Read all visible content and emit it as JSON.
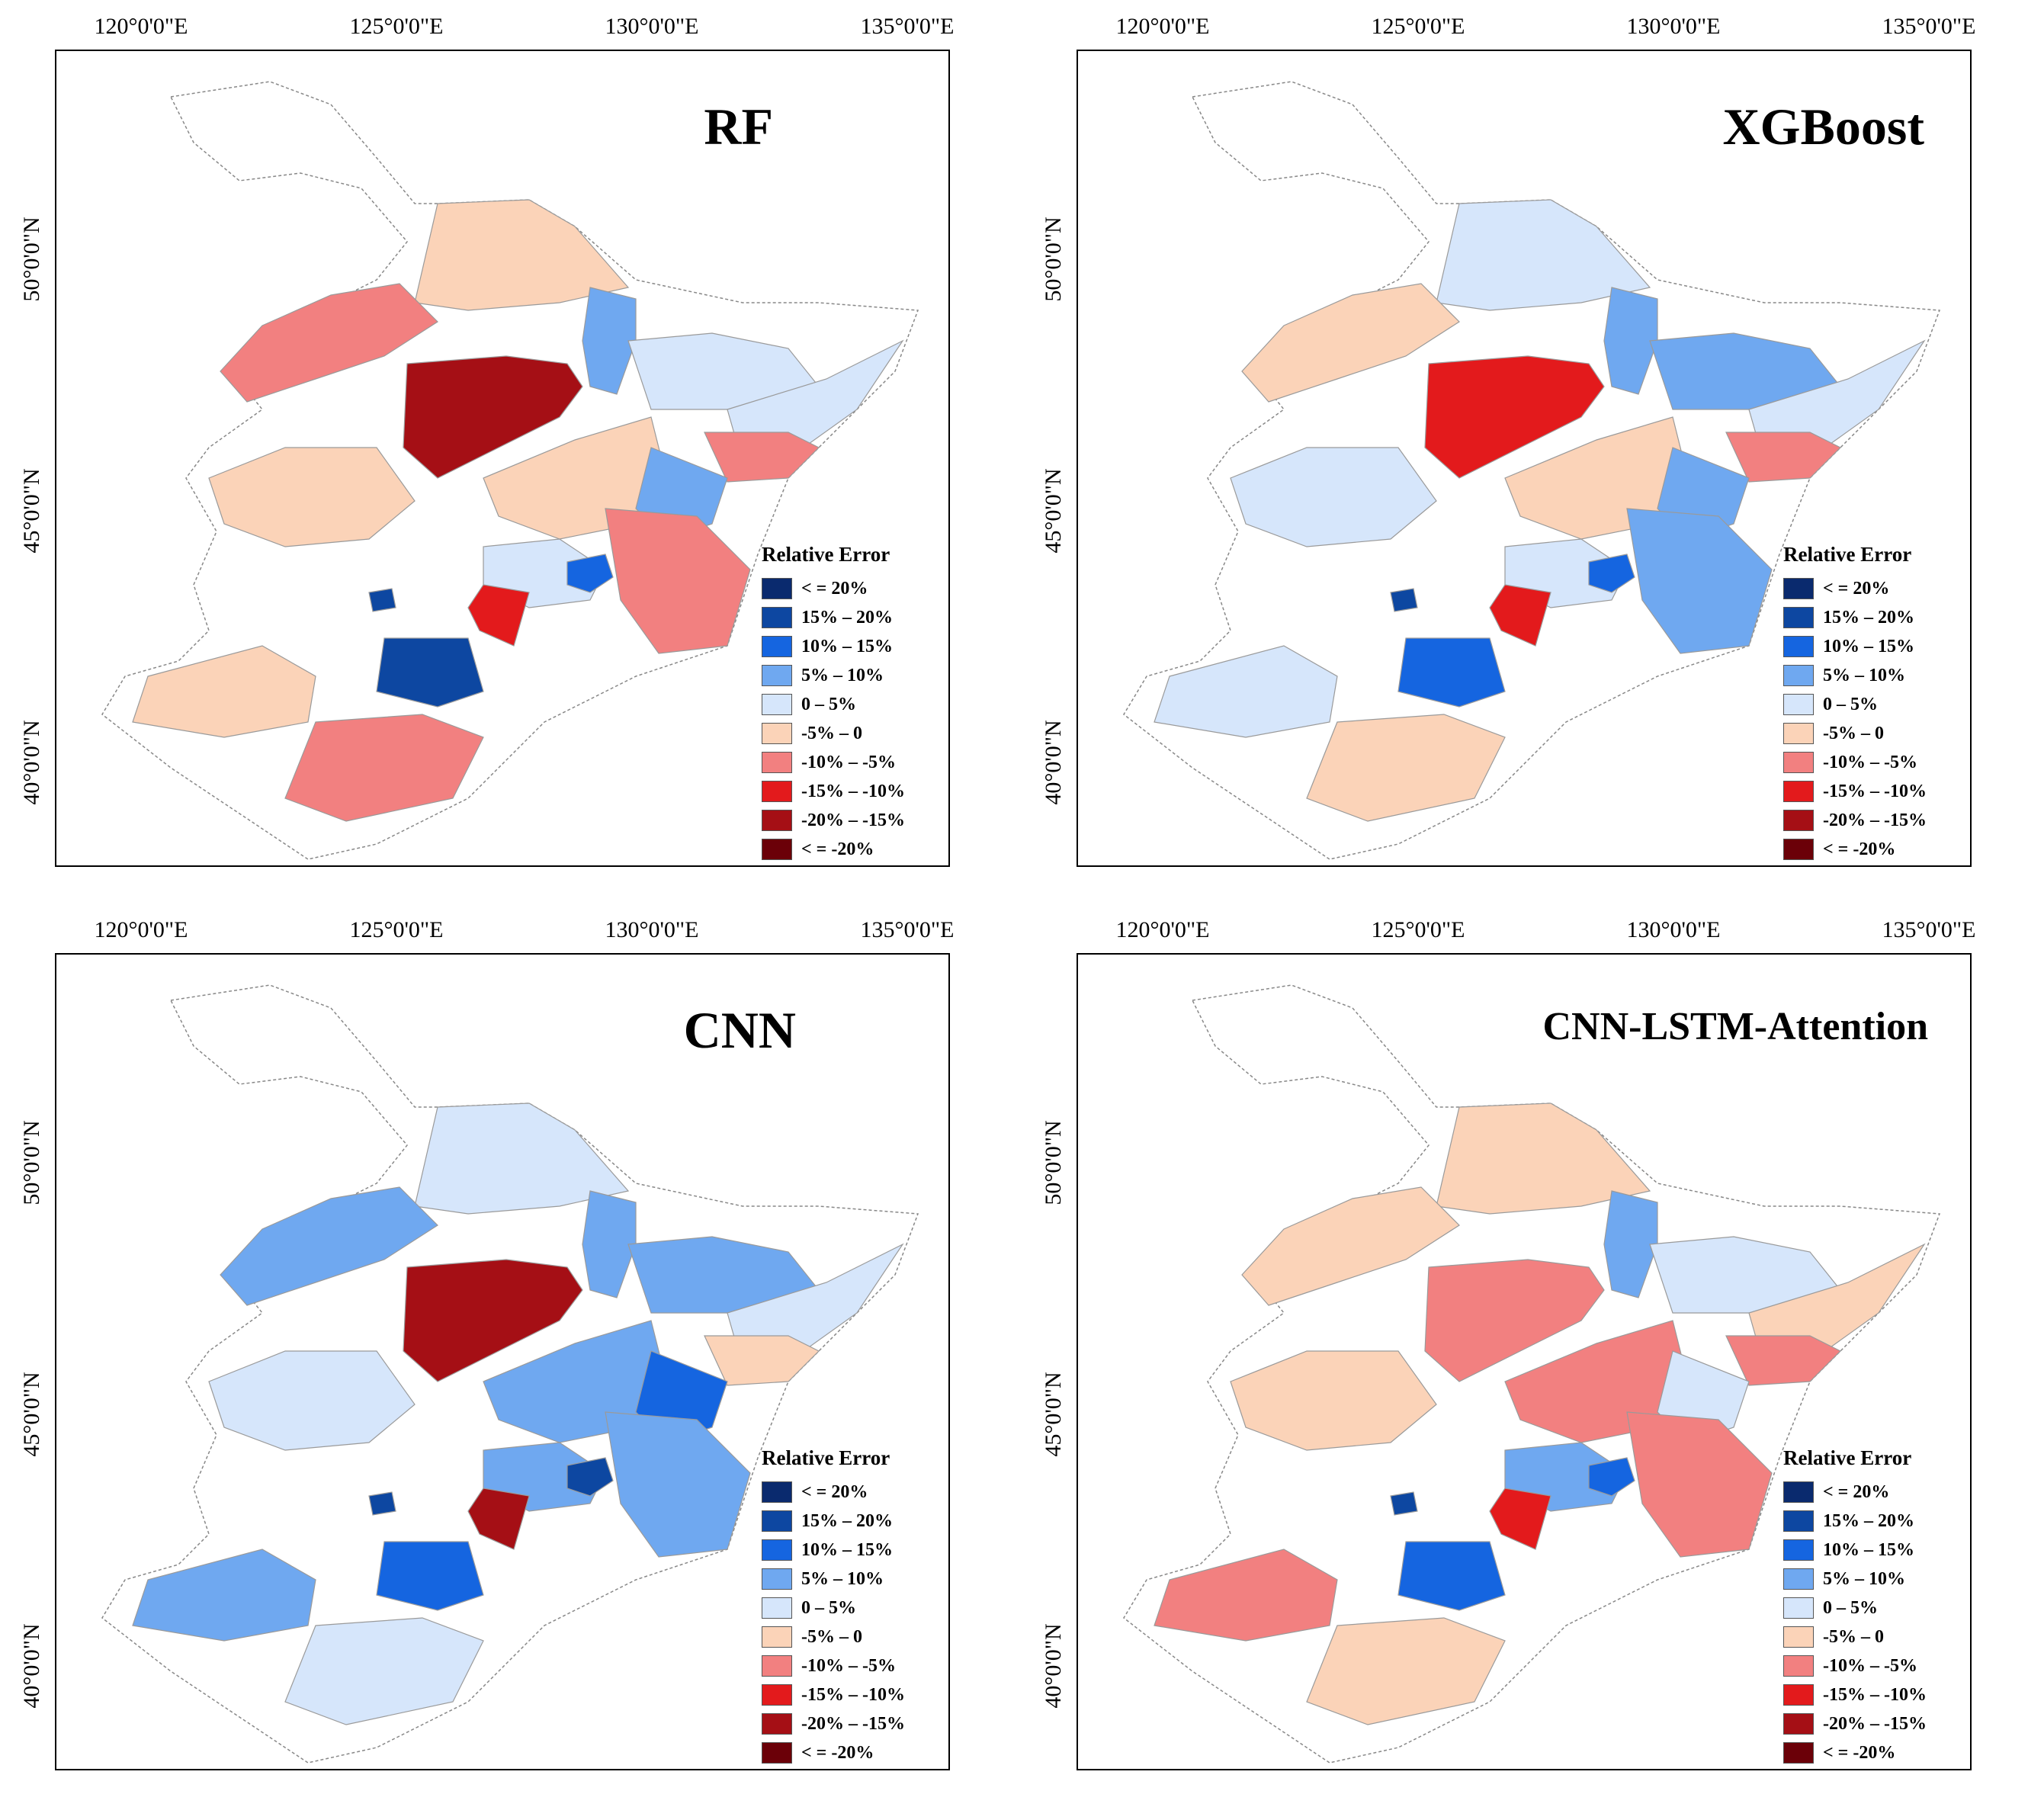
{
  "axes": {
    "x_ticks": [
      "120°0'0\"E",
      "125°0'0\"E",
      "130°0'0\"E",
      "135°0'0\"E"
    ],
    "y_ticks": [
      "50°0'0\"N",
      "45°0'0\"N",
      "40°0'0\"N"
    ]
  },
  "legend": {
    "title": "Relative Error",
    "classes": [
      {
        "label": "< = 20%",
        "color": "#0a2a6e"
      },
      {
        "label": "15% – 20%",
        "color": "#0d47a1"
      },
      {
        "label": "10% – 15%",
        "color": "#1565e0"
      },
      {
        "label": "5% – 10%",
        "color": "#6fa8f0"
      },
      {
        "label": "0 – 5%",
        "color": "#d6e6fb"
      },
      {
        "label": "-5% – 0",
        "color": "#fbd3b8"
      },
      {
        "label": "-10% – -5%",
        "color": "#f28080"
      },
      {
        "label": "-15% – -10%",
        "color": "#e31a1c"
      },
      {
        "label": "-20% – -15%",
        "color": "#a50f15"
      },
      {
        "label": "< = -20%",
        "color": "#6b0008"
      }
    ]
  },
  "panels": [
    {
      "title": "RF",
      "scheme": [
        5,
        6,
        8,
        3,
        4,
        4,
        6,
        5,
        3,
        5,
        6,
        4,
        2,
        1,
        7,
        1,
        5,
        6
      ]
    },
    {
      "title": "XGBoost",
      "scheme": [
        4,
        5,
        7,
        3,
        3,
        4,
        6,
        5,
        3,
        4,
        3,
        4,
        2,
        1,
        7,
        2,
        4,
        5
      ]
    },
    {
      "title": "CNN",
      "scheme": [
        4,
        3,
        8,
        3,
        3,
        4,
        5,
        3,
        2,
        4,
        3,
        3,
        1,
        1,
        8,
        2,
        3,
        4
      ]
    },
    {
      "title": "CNN-LSTM-Attention",
      "scheme": [
        5,
        5,
        6,
        3,
        4,
        5,
        6,
        6,
        4,
        5,
        6,
        3,
        2,
        1,
        7,
        2,
        6,
        5
      ]
    }
  ]
}
